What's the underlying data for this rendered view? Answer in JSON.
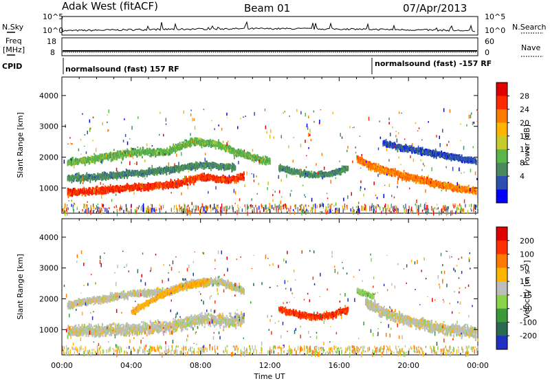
{
  "header": {
    "station": "Adak West (fitACF)",
    "beam": "Beam 01",
    "date": "07/Apr/2013"
  },
  "top_panels": {
    "nsky_label": "N.Sky",
    "nsky_ticks": [
      "10^5",
      "10^0"
    ],
    "nsearch_label": "N.Search",
    "nsearch_ticks": [
      "10^5",
      "10^0"
    ],
    "freq_label_1": "Freq",
    "freq_label_2": "[MHz]",
    "freq_ticks": [
      "18",
      "8"
    ],
    "nave_label": "Nave",
    "nave_ticks": [
      "60",
      "0"
    ],
    "cpid_label": "CPID",
    "cpid_1": "normalsound (fast) 157 RF",
    "cpid_2": "normalsound (fast) -157 RF"
  },
  "chart_data": [
    {
      "type": "heatmap",
      "name": "power-panel",
      "xlabel": "Time UT",
      "ylabel": "Slant Range [km]",
      "xlim": [
        0,
        24
      ],
      "ylim": [
        180,
        4600
      ],
      "x_ticks": [
        "00:00",
        "04:00",
        "08:00",
        "12:00",
        "16:00",
        "20:00",
        "00:00"
      ],
      "y_ticks": [
        1000,
        2000,
        3000,
        4000
      ],
      "colorbar_label": "Power [dB]",
      "colorbar_ticks": [
        28,
        24,
        20,
        16,
        12,
        8,
        4
      ],
      "colors": [
        "#0000ff",
        "#2d4fb0",
        "#4a8a5e",
        "#5ab64a",
        "#c7cc2c",
        "#ffb400",
        "#ff7a00",
        "#ff2a00",
        "#e00000"
      ],
      "bands": [
        {
          "x": [
            0.3,
            0.7,
            2,
            4,
            6.5,
            8,
            9.5,
            10.5
          ],
          "y": [
            900,
            900,
            950,
            1050,
            1150,
            1400,
            1300,
            1400
          ],
          "thickness": 170,
          "color_index": 7
        },
        {
          "x": [
            0.3,
            2,
            4,
            6.5,
            8,
            10
          ],
          "y": [
            1350,
            1400,
            1500,
            1650,
            1800,
            1700
          ],
          "thickness": 160,
          "color_index": 2
        },
        {
          "x": [
            0.3,
            2,
            4,
            6,
            7.5,
            9,
            10.5,
            12
          ],
          "y": [
            1850,
            2000,
            2200,
            2200,
            2550,
            2450,
            2100,
            1900
          ],
          "thickness": 180,
          "color_index": 3
        },
        {
          "x": [
            12.5,
            13.5,
            14.5,
            15.5,
            16.5
          ],
          "y": [
            1700,
            1550,
            1450,
            1500,
            1700
          ],
          "thickness": 150,
          "color_index": 2
        },
        {
          "x": [
            17,
            18,
            19,
            20,
            21,
            22.5,
            23.9
          ],
          "y": [
            2000,
            1700,
            1550,
            1400,
            1250,
            1050,
            950
          ],
          "thickness": 180,
          "color_index": 6
        },
        {
          "x": [
            18.5,
            19.5,
            21,
            22.5,
            23.9
          ],
          "y": [
            2500,
            2350,
            2200,
            2050,
            1900
          ],
          "thickness": 150,
          "color_index": 1
        }
      ]
    },
    {
      "type": "heatmap",
      "name": "velocity-panel",
      "xlabel": "Time UT",
      "ylabel": "Slant Range [km]",
      "xlim": [
        0,
        24
      ],
      "ylim": [
        180,
        4600
      ],
      "x_ticks": [
        "00:00",
        "04:00",
        "08:00",
        "12:00",
        "16:00",
        "20:00",
        "00:00"
      ],
      "y_ticks": [
        1000,
        2000,
        3000,
        4000
      ],
      "colorbar_label": "Velocity [m s⁻¹]",
      "colorbar_ticks": [
        200,
        100,
        50,
        15,
        -15,
        -50,
        -100,
        -200
      ],
      "colors": [
        "#2030c0",
        "#2a6a50",
        "#3a9a3a",
        "#8bd44a",
        "#bdbdbd",
        "#ffb400",
        "#ff7a00",
        "#ff3000",
        "#e00000"
      ],
      "bands": [
        {
          "x": [
            0.3,
            2,
            4,
            6.5,
            8,
            9.5,
            10.5
          ],
          "y": [
            1000,
            1000,
            1050,
            1150,
            1400,
            1300,
            1400
          ],
          "thickness": 320,
          "color_index": 4
        },
        {
          "x": [
            0.3,
            2,
            4,
            6,
            7.5,
            9,
            10.5
          ],
          "y": [
            1850,
            2000,
            2200,
            2250,
            2550,
            2600,
            2300
          ],
          "thickness": 180,
          "color_index": 4
        },
        {
          "x": [
            4,
            5.5,
            7,
            8.5
          ],
          "y": [
            1600,
            2100,
            2450,
            2600
          ],
          "thickness": 140,
          "color_index": 5
        },
        {
          "x": [
            12.5,
            13.5,
            14.5,
            15.5,
            16.5
          ],
          "y": [
            1700,
            1550,
            1450,
            1500,
            1700
          ],
          "thickness": 150,
          "color_index": 7
        },
        {
          "x": [
            17.5,
            19,
            20.5,
            22,
            23.9
          ],
          "y": [
            1900,
            1500,
            1250,
            1050,
            950
          ],
          "thickness": 300,
          "color_index": 4
        },
        {
          "x": [
            17,
            18
          ],
          "y": [
            2300,
            2100
          ],
          "thickness": 120,
          "color_index": 3
        }
      ]
    }
  ]
}
